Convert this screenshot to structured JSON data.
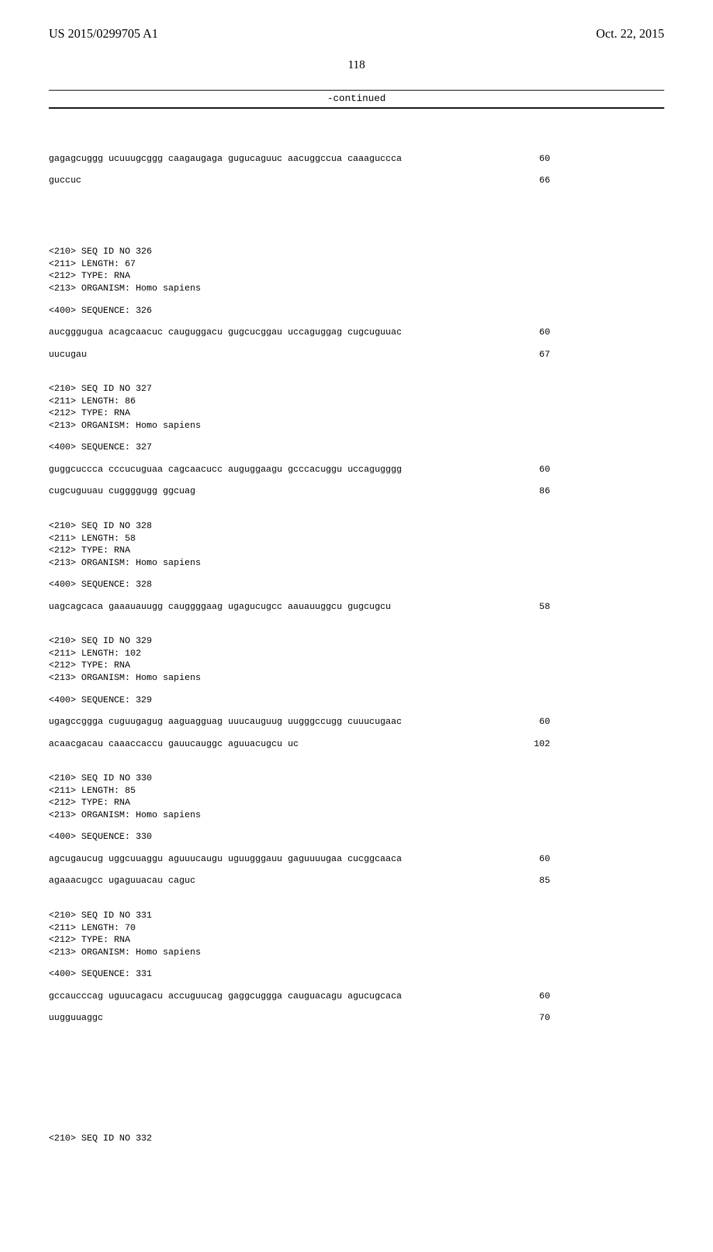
{
  "header": {
    "pub_number": "US 2015/0299705 A1",
    "pub_date": "Oct. 22, 2015"
  },
  "page_number": "118",
  "continued_label": "-continued",
  "intro_seq": {
    "lines": [
      {
        "text": "gagagcuggg ucuuugcggg caagaugaga gugucaguuc aacuggccua caaaguccca",
        "count": "60"
      },
      {
        "text": "guccuc",
        "count": "66"
      }
    ]
  },
  "entries": [
    {
      "meta": [
        "<210> SEQ ID NO 326",
        "<211> LENGTH: 67",
        "<212> TYPE: RNA",
        "<213> ORGANISM: Homo sapiens"
      ],
      "sequence_label": "<400> SEQUENCE: 326",
      "lines": [
        {
          "text": "aucgggugua acagcaacuc cauguggacu gugcucggau uccaguggag cugcuguuac",
          "count": "60"
        },
        {
          "text": "uucugau",
          "count": "67"
        }
      ]
    },
    {
      "meta": [
        "<210> SEQ ID NO 327",
        "<211> LENGTH: 86",
        "<212> TYPE: RNA",
        "<213> ORGANISM: Homo sapiens"
      ],
      "sequence_label": "<400> SEQUENCE: 327",
      "lines": [
        {
          "text": "guggcuccca cccucuguaa cagcaacucc auguggaagu gcccacuggu uccagugggg",
          "count": "60"
        },
        {
          "text": "cugcuguuau cuggggugg ggcuag",
          "count": "86"
        }
      ]
    },
    {
      "meta": [
        "<210> SEQ ID NO 328",
        "<211> LENGTH: 58",
        "<212> TYPE: RNA",
        "<213> ORGANISM: Homo sapiens"
      ],
      "sequence_label": "<400> SEQUENCE: 328",
      "lines": [
        {
          "text": "uagcagcaca gaaauauugg cauggggaag ugagucugcc aauauuggcu gugcugcu",
          "count": "58"
        }
      ]
    },
    {
      "meta": [
        "<210> SEQ ID NO 329",
        "<211> LENGTH: 102",
        "<212> TYPE: RNA",
        "<213> ORGANISM: Homo sapiens"
      ],
      "sequence_label": "<400> SEQUENCE: 329",
      "lines": [
        {
          "text": "ugagccggga cuguugagug aaguagguag uuucauguug uugggccugg cuuucugaac",
          "count": "60"
        },
        {
          "text": "acaacgacau caaaccaccu gauucauggc aguuacugcu uc",
          "count": "102"
        }
      ]
    },
    {
      "meta": [
        "<210> SEQ ID NO 330",
        "<211> LENGTH: 85",
        "<212> TYPE: RNA",
        "<213> ORGANISM: Homo sapiens"
      ],
      "sequence_label": "<400> SEQUENCE: 330",
      "lines": [
        {
          "text": "agcugaucug uggcuuaggu aguuucaugu uguugggauu gaguuuugaa cucggcaaca",
          "count": "60"
        },
        {
          "text": "agaaacugcc ugaguuacau caguc",
          "count": "85"
        }
      ]
    },
    {
      "meta": [
        "<210> SEQ ID NO 331",
        "<211> LENGTH: 70",
        "<212> TYPE: RNA",
        "<213> ORGANISM: Homo sapiens"
      ],
      "sequence_label": "<400> SEQUENCE: 331",
      "lines": [
        {
          "text": "gccaucccag uguucagacu accuguucag gaggcuggga cauguacagu agucugcaca",
          "count": "60"
        },
        {
          "text": "uugguuaggc",
          "count": "70"
        }
      ]
    }
  ],
  "trailing_meta": "<210> SEQ ID NO 332"
}
